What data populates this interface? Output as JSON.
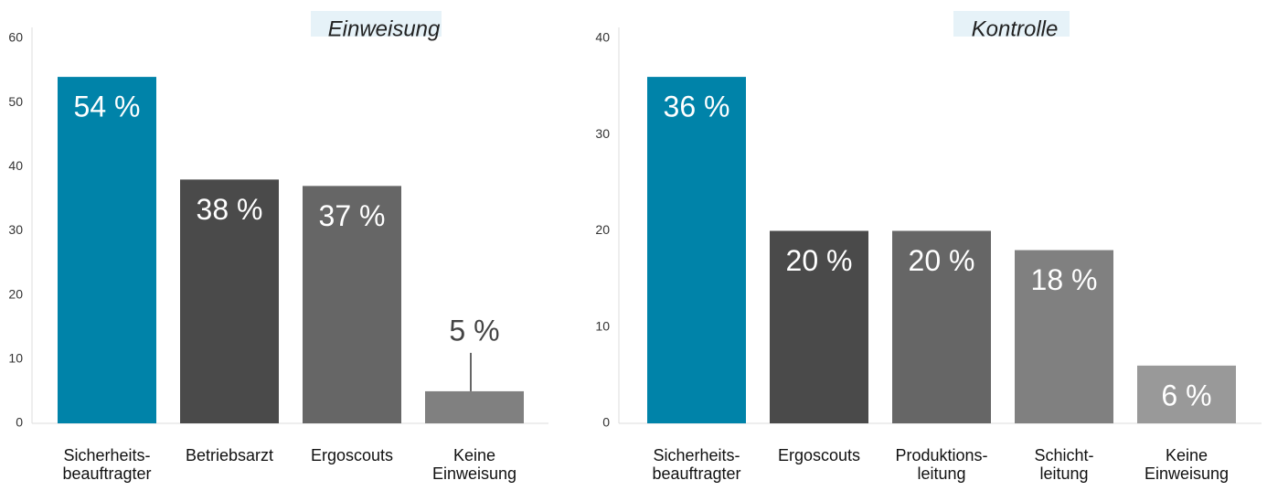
{
  "chart_data": [
    {
      "type": "bar",
      "title": "Einweisung",
      "categories": [
        "Sicherheits-\nbeauftragter",
        "Betriebsarzt",
        "Ergoscouts",
        "Keine\nEinweisung"
      ],
      "values": [
        54,
        38,
        37,
        5
      ],
      "value_labels": [
        "54 %",
        "38 %",
        "37 %",
        "5 %"
      ],
      "colors": [
        "#0083a9",
        "#4a4a4a",
        "#666666",
        "#808080"
      ],
      "ylim": [
        0,
        60
      ],
      "yticks": [
        0,
        10,
        20,
        30,
        40,
        50,
        60
      ]
    },
    {
      "type": "bar",
      "title": "Kontrolle",
      "categories": [
        "Sicherheits-\nbeauftragter",
        "Ergoscouts",
        "Produktions-\nleitung",
        "Schicht-\nleitung",
        "Keine\nEinweisung"
      ],
      "values": [
        36,
        20,
        20,
        18,
        6
      ],
      "value_labels": [
        "36 %",
        "20 %",
        "20 %",
        "18 %",
        "6 %"
      ],
      "colors": [
        "#0083a9",
        "#4a4a4a",
        "#666666",
        "#808080",
        "#999999"
      ],
      "ylim": [
        0,
        40
      ],
      "yticks": [
        0,
        10,
        20,
        30,
        40
      ]
    }
  ]
}
